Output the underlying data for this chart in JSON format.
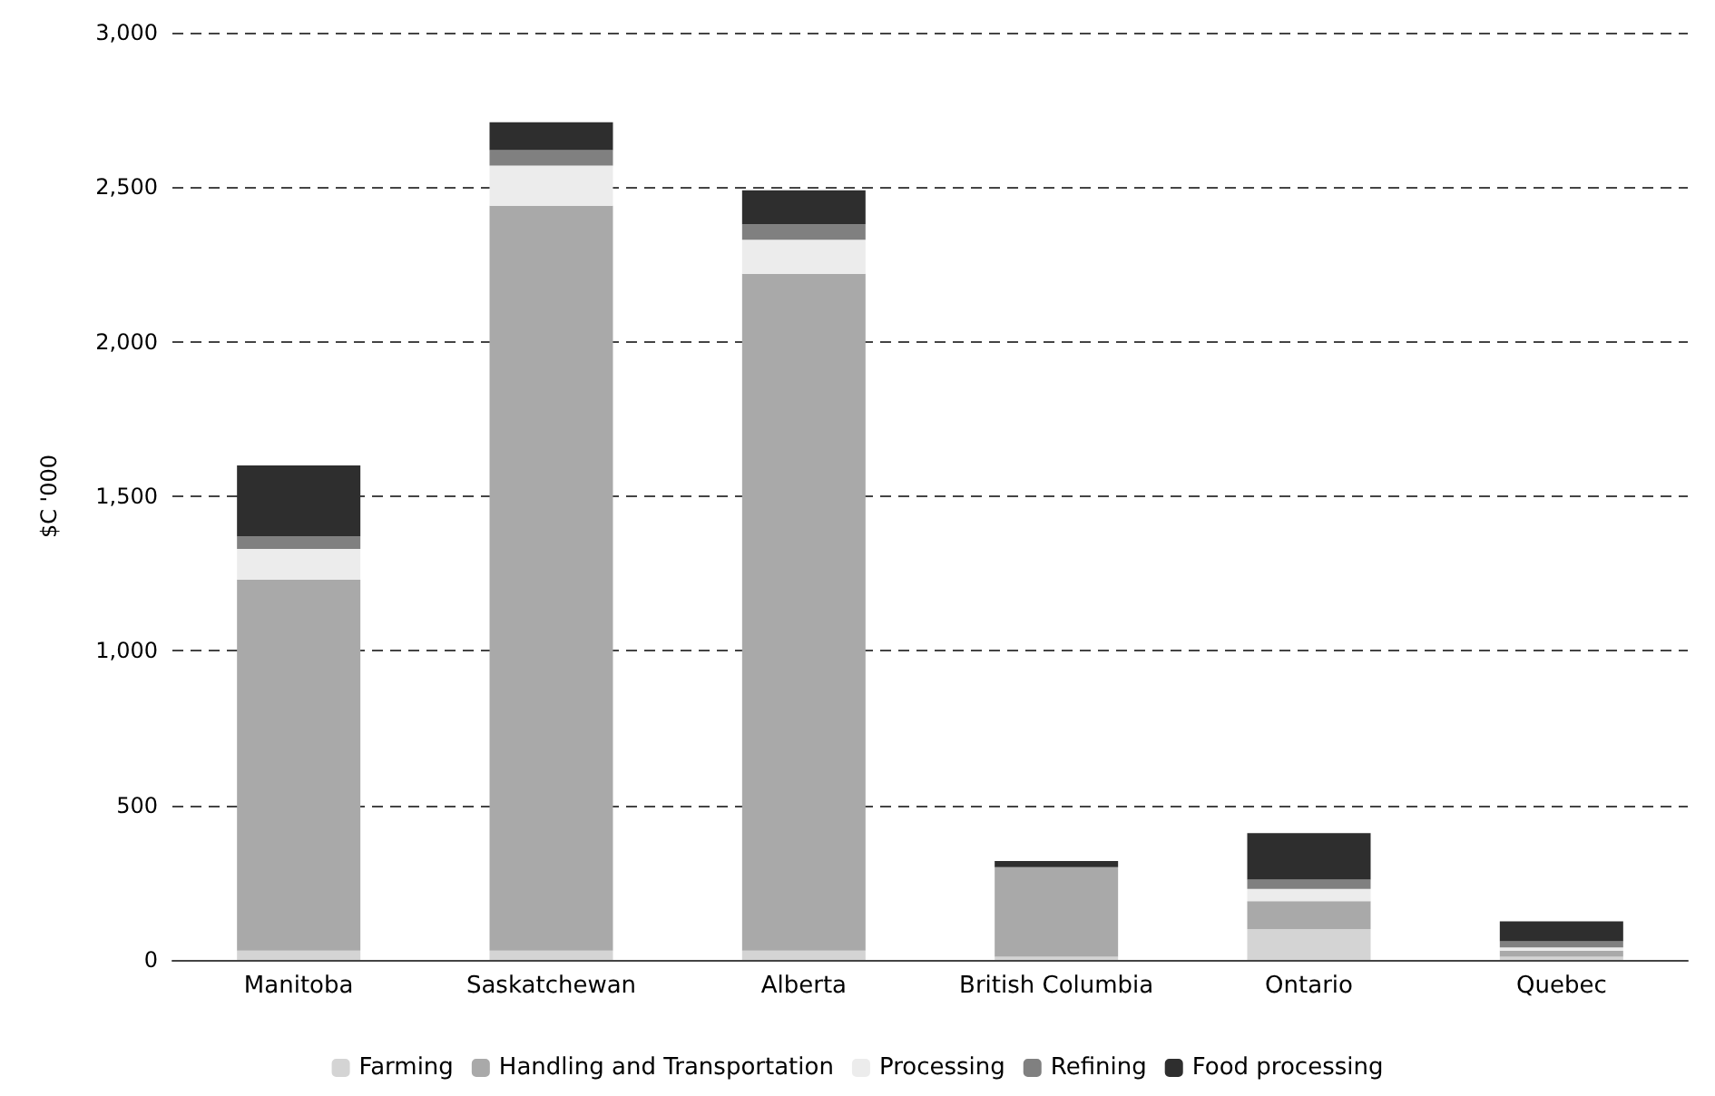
{
  "chart_data": {
    "type": "bar",
    "stacked": true,
    "ylabel": "$C '000",
    "categories": [
      "Manitoba",
      "Saskatchewan",
      "Alberta",
      "British Columbia",
      "Ontario",
      "Quebec"
    ],
    "series": [
      {
        "name": "Farming",
        "color": "#d4d4d4",
        "values": [
          30,
          30,
          30,
          10,
          100,
          10
        ]
      },
      {
        "name": "Handling and Transportation",
        "color": "#a9a9a9",
        "values": [
          1200,
          2410,
          2190,
          290,
          90,
          20
        ]
      },
      {
        "name": "Processing",
        "color": "#ececec",
        "values": [
          100,
          130,
          110,
          0,
          40,
          10
        ]
      },
      {
        "name": "Refining",
        "color": "#808080",
        "values": [
          40,
          50,
          50,
          0,
          30,
          20
        ]
      },
      {
        "name": "Food processing",
        "color": "#2e2e2e",
        "values": [
          230,
          90,
          110,
          20,
          150,
          65
        ]
      }
    ],
    "ylim": [
      0,
      3000
    ],
    "yticks": [
      0,
      500,
      {
        "value": 1000,
        "label": "1,000"
      },
      {
        "value": 1500,
        "label": "1,500"
      },
      {
        "value": 2000,
        "label": "2,000"
      },
      {
        "value": 2500,
        "label": "2,500"
      },
      {
        "value": 3000,
        "label": "3,000"
      }
    ],
    "grid": "y",
    "legend": "bottom"
  }
}
